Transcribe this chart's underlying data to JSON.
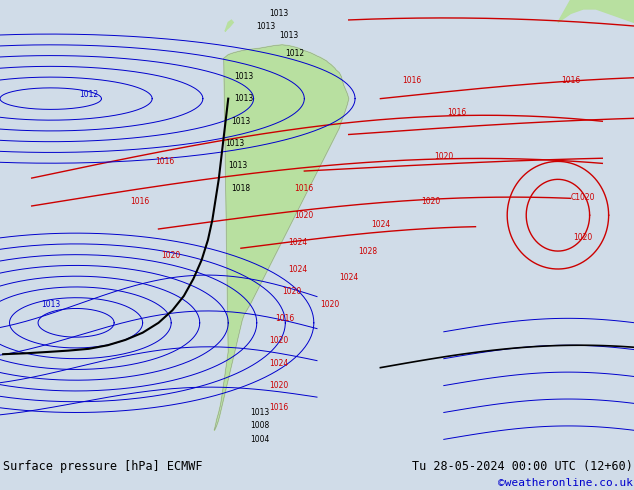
{
  "title_left": "Surface pressure [hPa] ECMWF",
  "title_right": "Tu 28-05-2024 00:00 UTC (12+60)",
  "copyright": "©weatheronline.co.uk",
  "bg_color": "#d0dce8",
  "land_color": "#b8e0a0",
  "fig_width": 6.34,
  "fig_height": 4.9,
  "dpi": 100,
  "bottom_bar_color": "#e8e8e8",
  "title_fontsize": 8.5,
  "copyright_fontsize": 8,
  "copyright_color": "#0000cc",
  "map_bg": "#d0dce8",
  "red_line_color": "#cc0000",
  "blue_line_color": "#0000cc",
  "black_line_color": "#000000",
  "lw_main": 1.0,
  "lw_thin": 0.7
}
